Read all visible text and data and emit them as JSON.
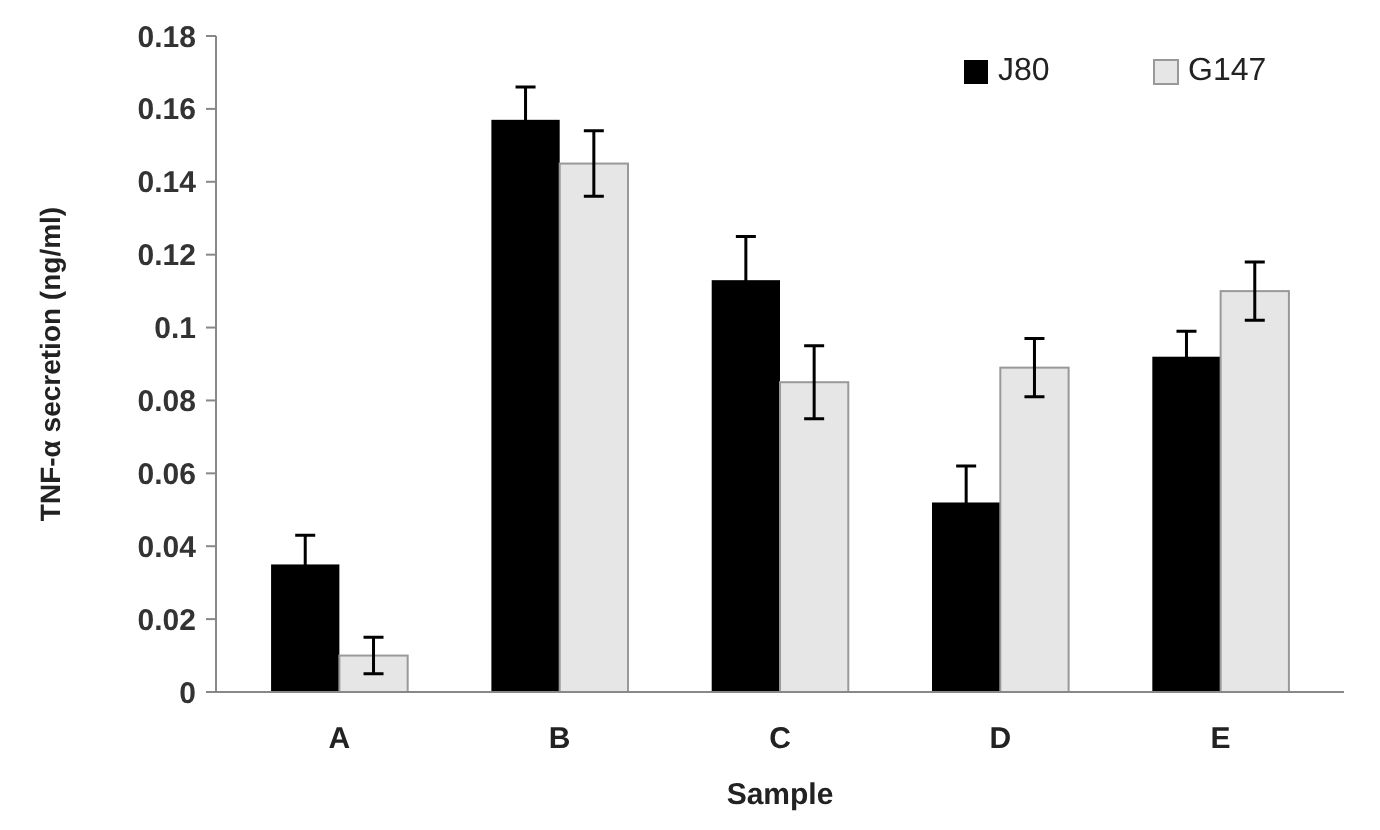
{
  "chart_data": {
    "type": "bar",
    "xlabel": "Sample",
    "ylabel": "TNF-α secretion (ng/ml)",
    "categories": [
      "A",
      "B",
      "C",
      "D",
      "E"
    ],
    "series": [
      {
        "name": "J80",
        "color": "#000000",
        "values": [
          0.035,
          0.157,
          0.113,
          0.052,
          0.092
        ],
        "errors": [
          0.008,
          0.009,
          0.012,
          0.01,
          0.007
        ]
      },
      {
        "name": "G147",
        "color": "#e6e6e6",
        "values": [
          0.01,
          0.145,
          0.085,
          0.089,
          0.11
        ],
        "errors": [
          0.005,
          0.009,
          0.01,
          0.008,
          0.008
        ]
      }
    ],
    "ylim": [
      0,
      0.18
    ],
    "yticks": [
      0,
      0.02,
      0.04,
      0.06,
      0.08,
      0.1,
      0.12,
      0.14,
      0.16,
      0.18
    ],
    "grid": false,
    "legend": "top right"
  }
}
